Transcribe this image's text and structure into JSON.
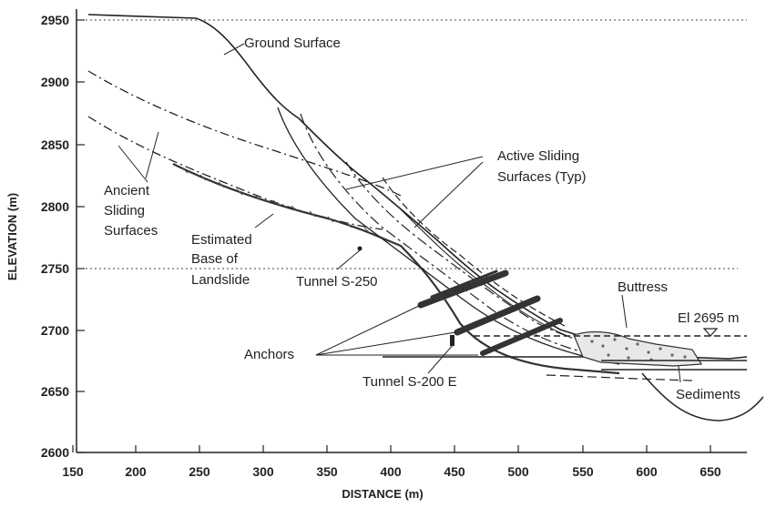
{
  "diagram": {
    "x_axis": {
      "label": "DISTANCE (m)",
      "ticks": [
        "150",
        "200",
        "250",
        "300",
        "350",
        "400",
        "450",
        "500",
        "550",
        "600",
        "650"
      ]
    },
    "y_axis": {
      "label": "ELEVATION (m)",
      "ticks": [
        "2950",
        "2900",
        "2850",
        "2800",
        "2750",
        "2700",
        "2650",
        "2600"
      ]
    },
    "reference_levels": [
      "2950",
      "2750"
    ],
    "annotations": {
      "ground_surface": "Ground Surface",
      "active_1": "Active Sliding",
      "active_2": "Surfaces (Typ)",
      "ancient_1": "Ancient",
      "ancient_2": "Sliding",
      "ancient_3": "Surfaces",
      "base_1": "Estimated",
      "base_2": "Base of",
      "base_3": "Landslide",
      "tunnel_250": "Tunnel S-250",
      "buttress": "Buttress",
      "el_2695": "El 2695 m",
      "anchors": "Anchors",
      "tunnel_200": "Tunnel S-200 E",
      "sediments": "Sediments"
    }
  }
}
